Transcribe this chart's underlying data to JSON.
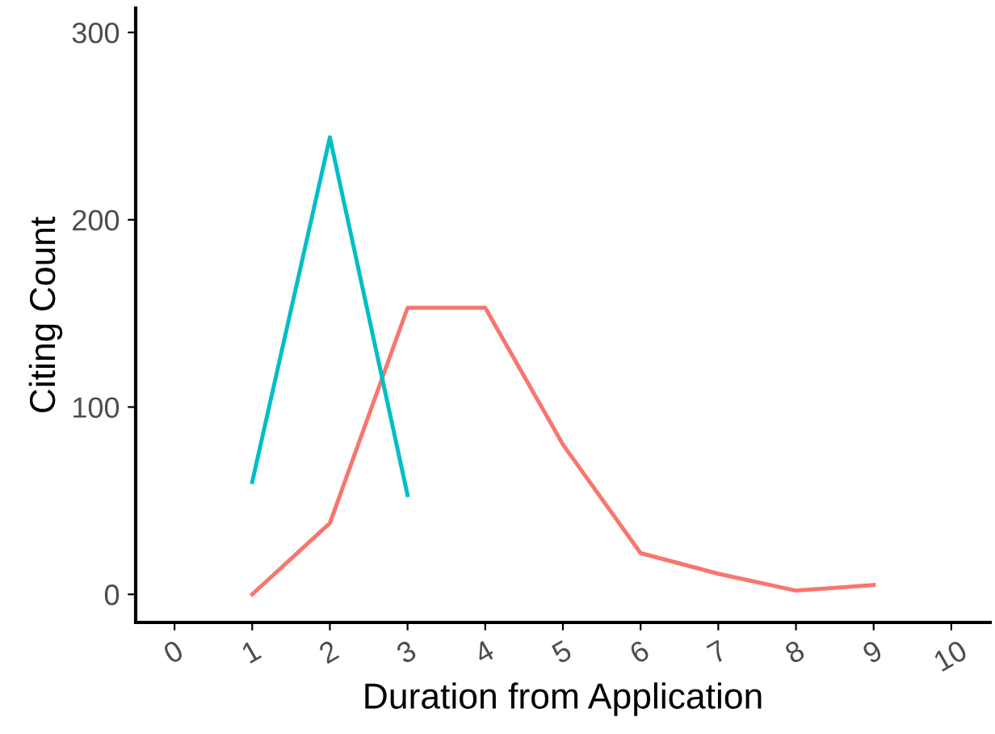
{
  "chart_data": {
    "type": "line",
    "xlabel": "Duration from Application",
    "ylabel": "Citing Count",
    "xlim": [
      -0.5,
      10.5
    ],
    "xticks": [
      0,
      1,
      2,
      3,
      4,
      5,
      6,
      7,
      8,
      9,
      10
    ],
    "ylim": [
      -15,
      313
    ],
    "yticks": [
      0,
      100,
      200,
      300
    ],
    "grid": false,
    "marker": "none",
    "line_style": "solid",
    "series": [
      {
        "color": "#f8766d",
        "x": [
          1,
          2,
          3,
          4,
          5,
          6,
          7,
          8,
          9
        ],
        "values": [
          0,
          38,
          153,
          153,
          80,
          22,
          11,
          2,
          5
        ]
      },
      {
        "color": "#00bfc4",
        "x": [
          1,
          2,
          3
        ],
        "values": [
          60,
          244,
          53
        ]
      }
    ]
  }
}
